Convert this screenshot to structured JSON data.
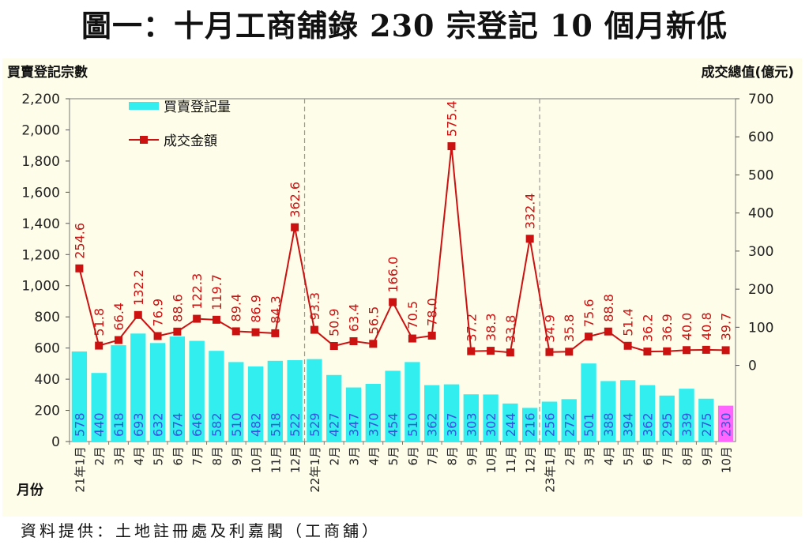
{
  "title": "圖一：十月工商舖錄 230 宗登記  10 個月新低",
  "source": "資料提供：土地註冊處及利嘉閣（工商舖）",
  "colors": {
    "bar": "#33eeee",
    "bar_highlight": "#ff66ff",
    "line": "#cc1111",
    "bar_label": "#3355dd",
    "line_label": "#cc1111",
    "background": "#fefde9"
  },
  "chart_data": {
    "type": "bar",
    "y_left_label": "買賣登記宗數",
    "y_right_label": "成交總值(億元)",
    "x_label": "月份",
    "y_left_ticks": [
      "0",
      "200",
      "400",
      "600",
      "800",
      "1,000",
      "1,200",
      "1,400",
      "1,600",
      "1,800",
      "2,000",
      "2,200"
    ],
    "y_right_ticks": [
      "0",
      "100",
      "200",
      "300",
      "400",
      "500",
      "600",
      "700"
    ],
    "ylim_left": [
      0,
      2200
    ],
    "ylim_right": [
      -200,
      700
    ],
    "categories": [
      "21年1月",
      "2月",
      "3月",
      "4月",
      "5月",
      "6月",
      "7月",
      "8月",
      "9月",
      "10月",
      "11月",
      "12月",
      "22年1月",
      "2月",
      "3月",
      "4月",
      "5月",
      "6月",
      "7月",
      "8月",
      "9月",
      "10月",
      "11月",
      "12月",
      "23年1月",
      "2月",
      "3月",
      "4月",
      "5月",
      "6月",
      "7月",
      "8月",
      "9月",
      "10月"
    ],
    "series": [
      {
        "name": "買賣登記量",
        "axis": "left",
        "kind": "bar",
        "values": [
          578,
          440,
          618,
          693,
          632,
          674,
          646,
          582,
          510,
          482,
          518,
          522,
          529,
          427,
          347,
          370,
          454,
          510,
          362,
          367,
          303,
          302,
          244,
          216,
          256,
          272,
          501,
          388,
          394,
          362,
          295,
          339,
          275,
          230
        ]
      },
      {
        "name": "成交金額",
        "axis": "right",
        "kind": "line",
        "values": [
          254.6,
          51.8,
          66.4,
          132.2,
          76.9,
          88.6,
          122.3,
          119.7,
          89.4,
          86.9,
          84.3,
          362.6,
          93.3,
          50.9,
          63.4,
          56.5,
          166.0,
          70.5,
          78.0,
          575.4,
          37.2,
          38.3,
          33.8,
          332.4,
          34.9,
          35.8,
          75.6,
          88.8,
          51.4,
          36.2,
          36.9,
          40.0,
          40.8,
          39.7
        ]
      }
    ],
    "highlight_index": 33,
    "year_dividers_after": [
      11,
      23
    ]
  }
}
